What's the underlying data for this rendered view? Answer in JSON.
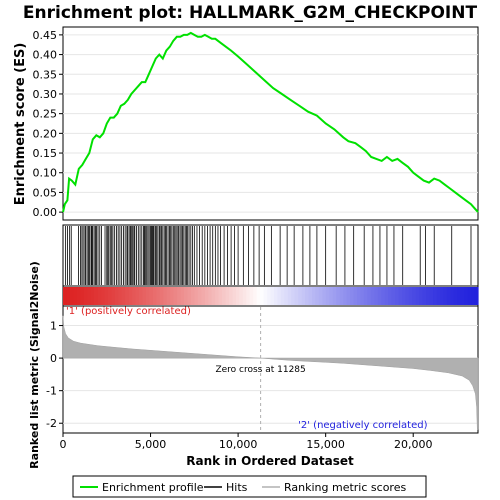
{
  "chart_data": [
    {
      "type": "line",
      "title": "Enrichment plot: HALLMARK_G2M_CHECKPOINT",
      "ylabel": "Enrichment score (ES)",
      "xlim": [
        0,
        23700
      ],
      "ylim": [
        -0.02,
        0.47
      ],
      "yticks": [
        0.0,
        0.05,
        0.1,
        0.15,
        0.2,
        0.25,
        0.3,
        0.35,
        0.4,
        0.45
      ],
      "ytick_labels": [
        "0.00",
        "0.05",
        "0.10",
        "0.15",
        "0.20",
        "0.25",
        "0.30",
        "0.35",
        "0.40",
        "0.45"
      ],
      "grid": true,
      "series": [
        {
          "name": "Enrichment profile",
          "color": "#00e000",
          "x": [
            0,
            100,
            250,
            350,
            500,
            700,
            900,
            1100,
            1300,
            1500,
            1700,
            1900,
            2100,
            2300,
            2500,
            2700,
            2900,
            3100,
            3300,
            3500,
            3700,
            3900,
            4100,
            4300,
            4500,
            4700,
            4900,
            5100,
            5300,
            5500,
            5700,
            5900,
            6100,
            6300,
            6500,
            6700,
            6900,
            7100,
            7300,
            7500,
            7700,
            7900,
            8100,
            8300,
            8500,
            8700,
            9000,
            9300,
            9600,
            10000,
            10500,
            11000,
            11500,
            12000,
            12500,
            13000,
            13500,
            14000,
            14500,
            15000,
            15500,
            16000,
            16300,
            16700,
            17000,
            17300,
            17600,
            17900,
            18200,
            18500,
            18800,
            19100,
            19400,
            19700,
            20000,
            20300,
            20600,
            20900,
            21200,
            21500,
            21800,
            22100,
            22400,
            22700,
            23000,
            23300,
            23500,
            23700
          ],
          "y": [
            0.0,
            0.02,
            0.03,
            0.085,
            0.08,
            0.07,
            0.11,
            0.12,
            0.135,
            0.15,
            0.185,
            0.195,
            0.19,
            0.2,
            0.225,
            0.24,
            0.24,
            0.25,
            0.27,
            0.275,
            0.285,
            0.3,
            0.31,
            0.32,
            0.33,
            0.33,
            0.35,
            0.37,
            0.39,
            0.4,
            0.39,
            0.41,
            0.42,
            0.435,
            0.445,
            0.445,
            0.45,
            0.45,
            0.455,
            0.45,
            0.445,
            0.445,
            0.45,
            0.445,
            0.44,
            0.44,
            0.43,
            0.42,
            0.41,
            0.395,
            0.375,
            0.355,
            0.335,
            0.315,
            0.3,
            0.285,
            0.27,
            0.255,
            0.245,
            0.225,
            0.21,
            0.19,
            0.18,
            0.175,
            0.165,
            0.155,
            0.14,
            0.135,
            0.13,
            0.14,
            0.13,
            0.135,
            0.125,
            0.115,
            0.1,
            0.09,
            0.08,
            0.075,
            0.085,
            0.08,
            0.07,
            0.06,
            0.05,
            0.04,
            0.03,
            0.02,
            0.01,
            0.0
          ]
        }
      ]
    },
    {
      "type": "scatter",
      "note_kind": "hits",
      "series": [
        {
          "name": "Hits",
          "color": "#000000",
          "x": [
            150,
            260,
            380,
            470,
            880,
            1000,
            1080,
            1150,
            1250,
            1300,
            1380,
            1450,
            1520,
            1600,
            1650,
            1700,
            1780,
            1850,
            1920,
            2000,
            2100,
            2200,
            2400,
            2500,
            2560,
            2620,
            2700,
            2780,
            2850,
            2950,
            3050,
            3150,
            3250,
            3350,
            3450,
            3550,
            3650,
            3700,
            3780,
            3850,
            3900,
            3980,
            4050,
            4100,
            4200,
            4300,
            4400,
            4500,
            4600,
            4650,
            4700,
            4780,
            4850,
            4920,
            5000,
            5050,
            5100,
            5150,
            5200,
            5280,
            5350,
            5420,
            5500,
            5550,
            5620,
            5700,
            5780,
            5850,
            5920,
            6000,
            6080,
            6150,
            6220,
            6300,
            6380,
            6450,
            6520,
            6600,
            6680,
            6750,
            6820,
            6900,
            6980,
            7050,
            7120,
            7200,
            7300,
            7400,
            7500,
            7650,
            7800,
            7950,
            8100,
            8250,
            8400,
            8550,
            8700,
            8850,
            9000,
            9200,
            9400,
            9600,
            9800,
            10000,
            10300,
            10600,
            10900,
            11200,
            11500,
            11900,
            12400,
            12800,
            13200,
            13700,
            14100,
            14500,
            15000,
            15600,
            16100,
            16600,
            17200,
            17700,
            18100,
            18500,
            18900,
            19400,
            20400,
            20700,
            21200,
            22200,
            23300
          ]
        }
      ]
    },
    {
      "type": "area",
      "ylabel": "Ranked list metric (Signal2Noise)",
      "xlabel": "Rank in Ordered Dataset",
      "xlim": [
        0,
        23700
      ],
      "ylim": [
        -2.3,
        1.6
      ],
      "yticks": [
        -2,
        -1,
        0,
        1
      ],
      "ytick_labels": [
        "-2",
        "-1",
        "0",
        "1"
      ],
      "xticks": [
        0,
        5000,
        10000,
        15000,
        20000
      ],
      "xtick_labels": [
        "0",
        "5,000",
        "10,000",
        "15,000",
        "20,000"
      ],
      "zero_cross": 11285,
      "zero_cross_label": "Zero cross at 11285",
      "pos_label": "'1' (positively correlated)",
      "neg_label": "'2' (negatively correlated)",
      "pos_color": "#dd2222",
      "neg_color": "#2222dd",
      "series": [
        {
          "name": "Ranking metric scores",
          "color": "#b0b0b0",
          "x": [
            0,
            50,
            150,
            300,
            600,
            1000,
            2000,
            3000,
            4000,
            5000,
            6000,
            7000,
            8000,
            9000,
            10000,
            11000,
            11285,
            12000,
            13000,
            14000,
            15000,
            16000,
            17000,
            18000,
            19000,
            20000,
            21000,
            22000,
            22800,
            23200,
            23400,
            23550,
            23620,
            23660,
            23700
          ],
          "y": [
            1.3,
            0.95,
            0.75,
            0.62,
            0.52,
            0.46,
            0.38,
            0.33,
            0.28,
            0.24,
            0.2,
            0.16,
            0.12,
            0.08,
            0.04,
            0.01,
            0.0,
            -0.03,
            -0.07,
            -0.1,
            -0.13,
            -0.16,
            -0.2,
            -0.24,
            -0.28,
            -0.32,
            -0.38,
            -0.45,
            -0.55,
            -0.68,
            -0.85,
            -1.1,
            -1.5,
            -2.2,
            -2.2
          ]
        }
      ]
    }
  ],
  "legend": {
    "items": [
      {
        "label": "Enrichment profile",
        "color": "#00e000"
      },
      {
        "label": "Hits",
        "color": "#000000"
      },
      {
        "label": "Ranking metric scores",
        "color": "#b0b0b0"
      }
    ]
  }
}
